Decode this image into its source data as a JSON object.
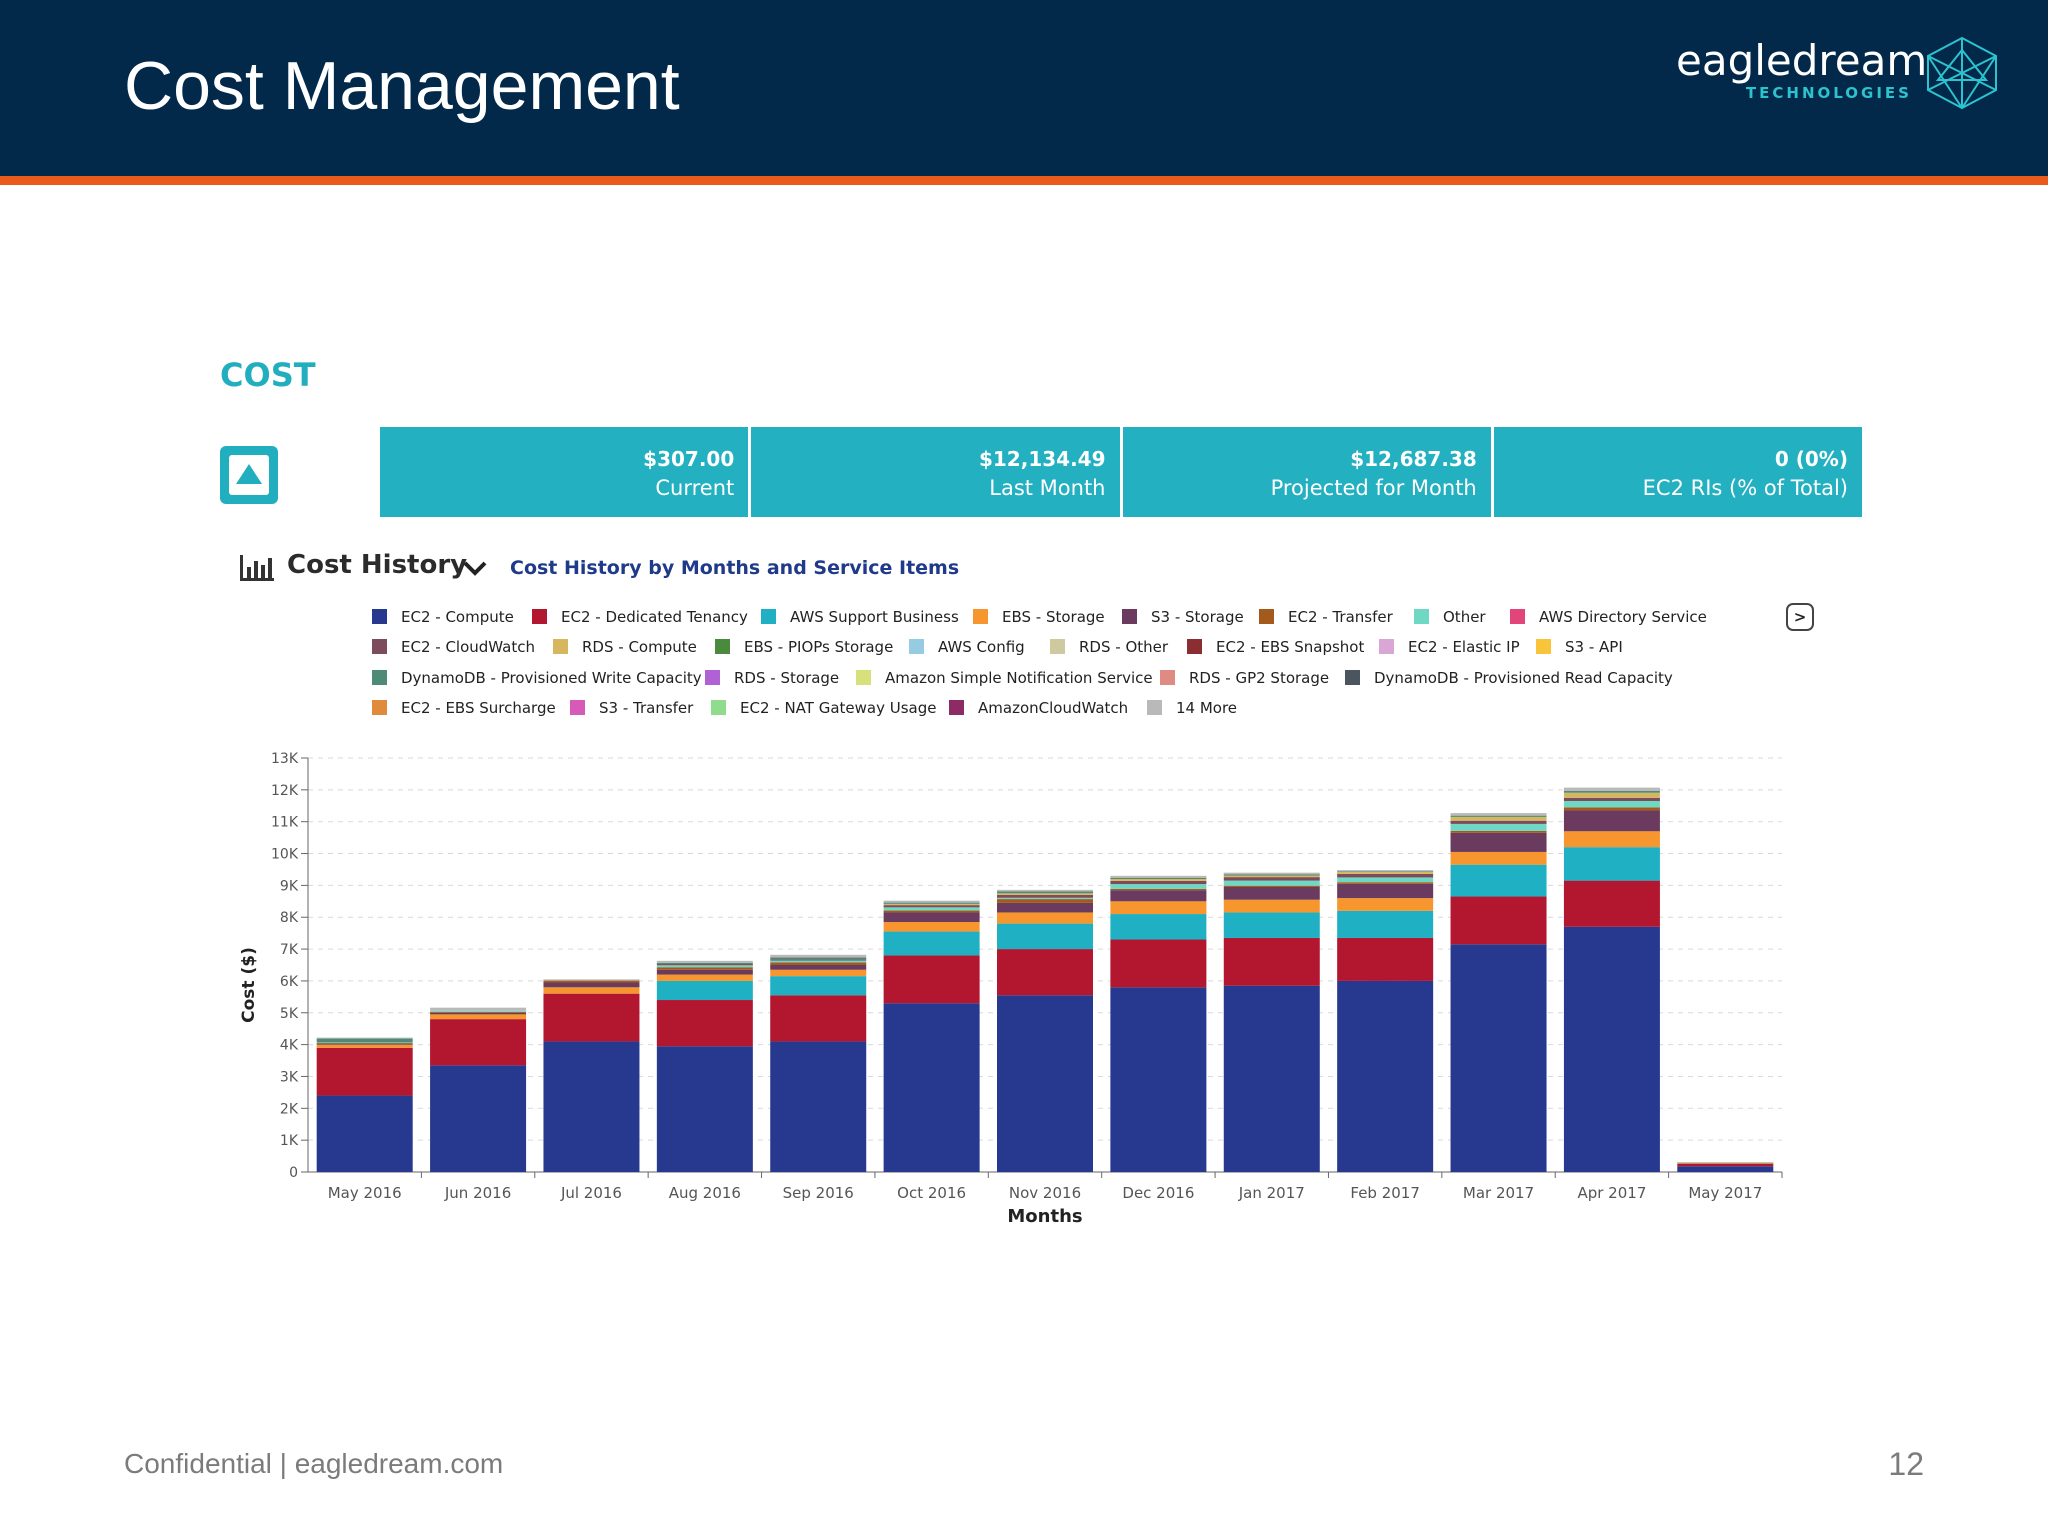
{
  "slide": {
    "title": "Cost Management",
    "footer": "Confidential | eagledream.com",
    "page_number": "12"
  },
  "logo": {
    "word": "eagledream",
    "sub": "TECHNOLOGIES"
  },
  "section": {
    "title": "COST"
  },
  "kpis": [
    {
      "value": "$307.00",
      "label": "Current"
    },
    {
      "value": "$12,134.49",
      "label": "Last Month"
    },
    {
      "value": "$12,687.38",
      "label": "Projected for Month"
    },
    {
      "value": "0 (0%)",
      "label": "EC2 RIs (% of Total)"
    }
  ],
  "history": {
    "title": "Cost History",
    "subtitle": "Cost History by Months and Service Items",
    "next_label": ">"
  },
  "legend": {
    "rows": [
      [
        {
          "name": "EC2 - Compute",
          "color": "#26398e"
        },
        {
          "name": "EC2 - Dedicated Tenancy",
          "color": "#b3162f"
        },
        {
          "name": "AWS Support Business",
          "color": "#1fb0c3"
        },
        {
          "name": "EBS - Storage",
          "color": "#f7962e"
        },
        {
          "name": "S3 - Storage",
          "color": "#6a3b5e"
        },
        {
          "name": "EC2 - Transfer",
          "color": "#a35a1c"
        },
        {
          "name": "Other",
          "color": "#6fd8c4"
        },
        {
          "name": "AWS Directory Service",
          "color": "#e2457a"
        }
      ],
      [
        {
          "name": "EC2 - CloudWatch",
          "color": "#7d4c5c"
        },
        {
          "name": "RDS - Compute",
          "color": "#d6b65e"
        },
        {
          "name": "EBS - PIOPs Storage",
          "color": "#4a8a3c"
        },
        {
          "name": "AWS Config",
          "color": "#96cce2"
        },
        {
          "name": "RDS - Other",
          "color": "#cfc9a0"
        },
        {
          "name": "EC2 - EBS Snapshot",
          "color": "#8b2e32"
        },
        {
          "name": "EC2 - Elastic IP",
          "color": "#d9a6d6"
        },
        {
          "name": "S3 - API",
          "color": "#f8c53a"
        }
      ],
      [
        {
          "name": "DynamoDB - Provisioned Write Capacity",
          "color": "#4e8a76"
        },
        {
          "name": "RDS - Storage",
          "color": "#b062d4"
        },
        {
          "name": "Amazon Simple Notification Service",
          "color": "#d7e07a"
        },
        {
          "name": "RDS - GP2 Storage",
          "color": "#e08a84"
        },
        {
          "name": "DynamoDB - Provisioned Read Capacity",
          "color": "#4a5560"
        }
      ],
      [
        {
          "name": "EC2 - EBS Surcharge",
          "color": "#e08a3c"
        },
        {
          "name": "S3 - Transfer",
          "color": "#d65bb8"
        },
        {
          "name": "EC2 - NAT Gateway Usage",
          "color": "#8fdc8c"
        },
        {
          "name": "AmazonCloudWatch",
          "color": "#8e2a64"
        },
        {
          "name": "14 More",
          "color": "#b9b9b9"
        }
      ]
    ]
  },
  "chart_data": {
    "type": "bar",
    "stacked": true,
    "xlabel": "Months",
    "ylabel": "Cost ($)",
    "ylim": [
      0,
      13000
    ],
    "yticks": [
      0,
      1000,
      2000,
      3000,
      4000,
      5000,
      6000,
      7000,
      8000,
      9000,
      10000,
      11000,
      12000,
      13000
    ],
    "ytick_labels": [
      "0",
      "1K",
      "2K",
      "3K",
      "4K",
      "5K",
      "6K",
      "7K",
      "8K",
      "9K",
      "10K",
      "11K",
      "12K",
      "13K"
    ],
    "grid": true,
    "categories": [
      "May 2016",
      "Jun 2016",
      "Jul 2016",
      "Aug 2016",
      "Sep 2016",
      "Oct 2016",
      "Nov 2016",
      "Dec 2016",
      "Jan 2017",
      "Feb 2017",
      "Mar 2017",
      "Apr 2017",
      "May 2017"
    ],
    "series": [
      {
        "name": "EC2 - Compute",
        "color": "#26398e",
        "values": [
          2400,
          3350,
          4100,
          3950,
          4100,
          5300,
          5550,
          5800,
          5850,
          6000,
          7150,
          7700,
          180
        ]
      },
      {
        "name": "EC2 - Dedicated Tenancy",
        "color": "#b3162f",
        "values": [
          1500,
          1450,
          1500,
          1450,
          1450,
          1500,
          1450,
          1500,
          1500,
          1350,
          1500,
          1450,
          80
        ]
      },
      {
        "name": "AWS Support Business",
        "color": "#1fb0c3",
        "values": [
          0,
          0,
          0,
          600,
          600,
          750,
          800,
          800,
          800,
          850,
          1000,
          1050,
          0
        ]
      },
      {
        "name": "EBS - Storage",
        "color": "#f7962e",
        "values": [
          100,
          150,
          200,
          200,
          200,
          300,
          350,
          400,
          400,
          400,
          400,
          500,
          20
        ]
      },
      {
        "name": "S3 - Storage",
        "color": "#6a3b5e",
        "values": [
          30,
          50,
          150,
          150,
          150,
          300,
          300,
          350,
          400,
          450,
          600,
          650,
          15
        ]
      },
      {
        "name": "EC2 - Transfer",
        "color": "#a35a1c",
        "values": [
          20,
          30,
          60,
          80,
          80,
          60,
          120,
          40,
          40,
          50,
          60,
          100,
          5
        ]
      },
      {
        "name": "Other",
        "color": "#6fd8c4",
        "values": [
          20,
          30,
          0,
          60,
          60,
          100,
          40,
          150,
          160,
          150,
          220,
          200,
          2
        ]
      },
      {
        "name": "EC2 - CloudWatch",
        "color": "#7d4c5c",
        "values": [
          0,
          0,
          0,
          40,
          40,
          70,
          90,
          100,
          110,
          110,
          100,
          100,
          0
        ]
      },
      {
        "name": "RDS - Compute",
        "color": "#d6b65e",
        "values": [
          0,
          0,
          0,
          0,
          0,
          40,
          50,
          60,
          50,
          60,
          120,
          160,
          0
        ]
      },
      {
        "name": "DynamoDB - Provisioned Write Capacity",
        "color": "#4e8a76",
        "values": [
          120,
          0,
          0,
          40,
          60,
          40,
          60,
          40,
          40,
          20,
          40,
          60,
          0
        ]
      },
      {
        "name": "14 More",
        "color": "#b9b9b9",
        "values": [
          30,
          100,
          40,
          60,
          80,
          60,
          50,
          60,
          50,
          40,
          80,
          100,
          0
        ]
      }
    ]
  }
}
